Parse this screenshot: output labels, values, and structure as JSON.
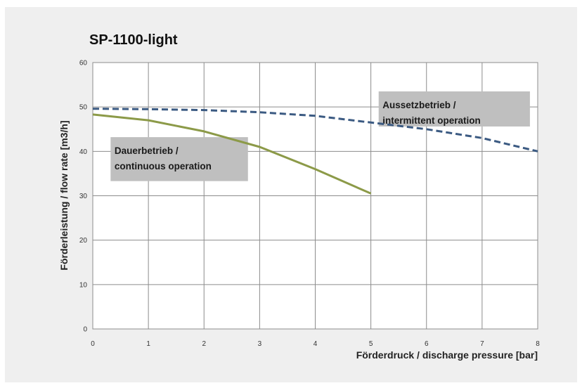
{
  "chart_data": {
    "type": "line",
    "title": "SP-1100-light",
    "xlabel": "Förderdruck / discharge pressure [bar]",
    "ylabel": "Förderleistung  /  flow rate  [m3/h]",
    "xlim": [
      0,
      8
    ],
    "ylim": [
      0,
      60
    ],
    "x_ticks": [
      "0",
      "1",
      "2",
      "3",
      "4",
      "5",
      "6",
      "7",
      "8"
    ],
    "y_ticks": [
      "0",
      "10",
      "20",
      "30",
      "40",
      "50",
      "60"
    ],
    "grid": true,
    "series": [
      {
        "name": "Dauerbetrieb / continuous operation",
        "color": "#8c9a48",
        "style": "solid",
        "x": [
          0,
          1,
          2,
          3,
          4,
          5
        ],
        "y": [
          48.3,
          47.0,
          44.5,
          41.0,
          36.0,
          30.5
        ]
      },
      {
        "name": "Aussetzbetrieb / intermittent operation",
        "color": "#3b5a82",
        "style": "dashed",
        "x": [
          0,
          1,
          2,
          3,
          4,
          5,
          6,
          7,
          8
        ],
        "y": [
          49.6,
          49.5,
          49.3,
          48.8,
          48.0,
          46.5,
          45.0,
          43.0,
          40.0
        ]
      }
    ],
    "annotations": [
      {
        "id": "cont",
        "lines": [
          "Dauerbetrieb /",
          "continuous operation"
        ]
      },
      {
        "id": "inter",
        "lines": [
          "Aussetzbetrieb /",
          "intermittent operation"
        ]
      }
    ]
  }
}
